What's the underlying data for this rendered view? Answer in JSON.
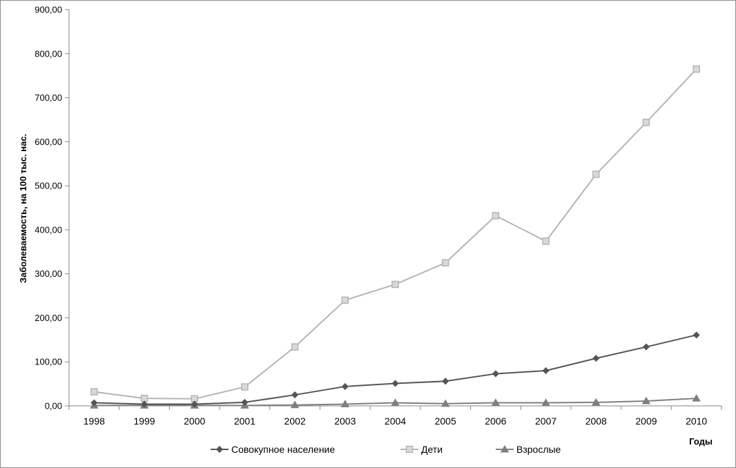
{
  "chart_data": {
    "type": "line",
    "title": "",
    "xlabel": "Годы",
    "ylabel": "Заболеваемость, на 100  тыс. нас.",
    "ylim": [
      0,
      900
    ],
    "y_ticks": [
      "0,00",
      "100,00",
      "200,00",
      "300,00",
      "400,00",
      "500,00",
      "600,00",
      "700,00",
      "800,00",
      "900,00"
    ],
    "categories": [
      "1998",
      "1999",
      "2000",
      "2001",
      "2002",
      "2003",
      "2004",
      "2005",
      "2006",
      "2007",
      "2008",
      "2009",
      "2010"
    ],
    "grid": false,
    "legend_position": "bottom",
    "series": [
      {
        "name": "Совокупное население",
        "marker": "diamond",
        "color": "#555555",
        "values": [
          7,
          4,
          4,
          8,
          25,
          44,
          51,
          56,
          73,
          80,
          108,
          134,
          161
        ]
      },
      {
        "name": "Дети",
        "marker": "square",
        "color": "#b4b4b4",
        "values": [
          32,
          17,
          16,
          43,
          134,
          240,
          276,
          325,
          432,
          374,
          526,
          644,
          765
        ]
      },
      {
        "name": "Взрослые",
        "marker": "triangle",
        "color": "#7f7f7f",
        "values": [
          1,
          1,
          1,
          1,
          2,
          4,
          7,
          5,
          7,
          7,
          8,
          11,
          17
        ]
      }
    ]
  }
}
